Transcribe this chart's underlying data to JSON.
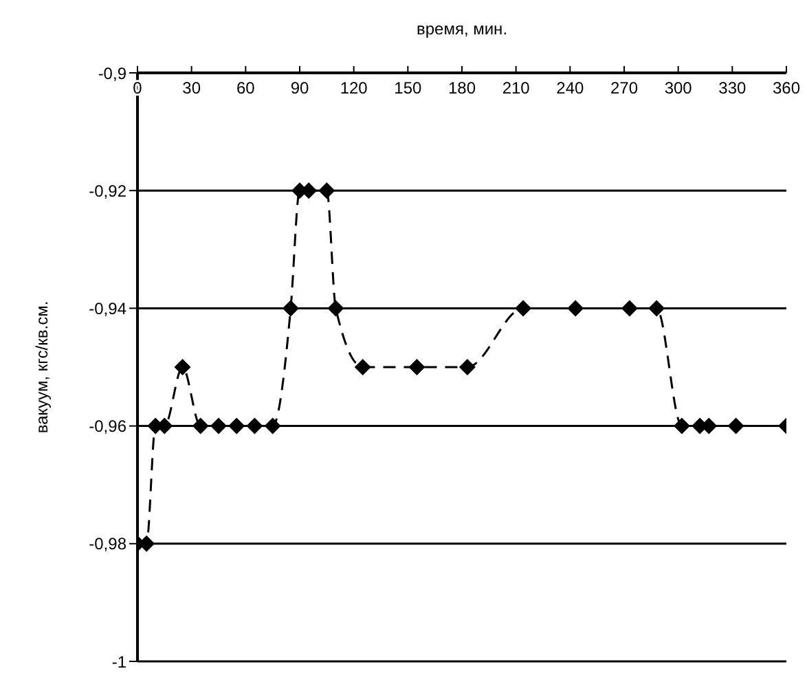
{
  "chart_data": {
    "type": "line",
    "xlabel": "время, мин.",
    "ylabel": "вакуум, кгс/кв.см.",
    "x": [
      0,
      5,
      10,
      15,
      25,
      35,
      45,
      55,
      65,
      75,
      85,
      90,
      95,
      105,
      110,
      125,
      155,
      183,
      214,
      243,
      273,
      288,
      302,
      312,
      317,
      332,
      360
    ],
    "series": [
      {
        "color": "#000000",
        "values": [
          -0.98,
          -0.98,
          -0.96,
          -0.96,
          -0.95,
          -0.96,
          -0.96,
          -0.96,
          -0.96,
          -0.96,
          -0.94,
          -0.92,
          -0.92,
          -0.92,
          -0.94,
          -0.95,
          -0.95,
          -0.95,
          -0.94,
          -0.94,
          -0.94,
          -0.94,
          -0.96,
          -0.96,
          -0.96,
          -0.96,
          -0.96
        ]
      }
    ],
    "xlim": [
      0,
      360
    ],
    "xticks": [
      0,
      30,
      60,
      90,
      120,
      150,
      180,
      210,
      240,
      270,
      300,
      330,
      360
    ],
    "ylim": [
      -1,
      -0.9
    ],
    "yticks": [
      {
        "value": -1,
        "label": "-1"
      },
      {
        "value": -0.98,
        "label": "-0,98"
      },
      {
        "value": -0.96,
        "label": "-0,96"
      },
      {
        "value": -0.94,
        "label": "-0,94"
      },
      {
        "value": -0.92,
        "label": "-0,92"
      },
      {
        "value": -0.9,
        "label": "-0,9"
      }
    ],
    "grid": "y",
    "marker": "diamond",
    "line_style": "dashed",
    "legend": false
  }
}
